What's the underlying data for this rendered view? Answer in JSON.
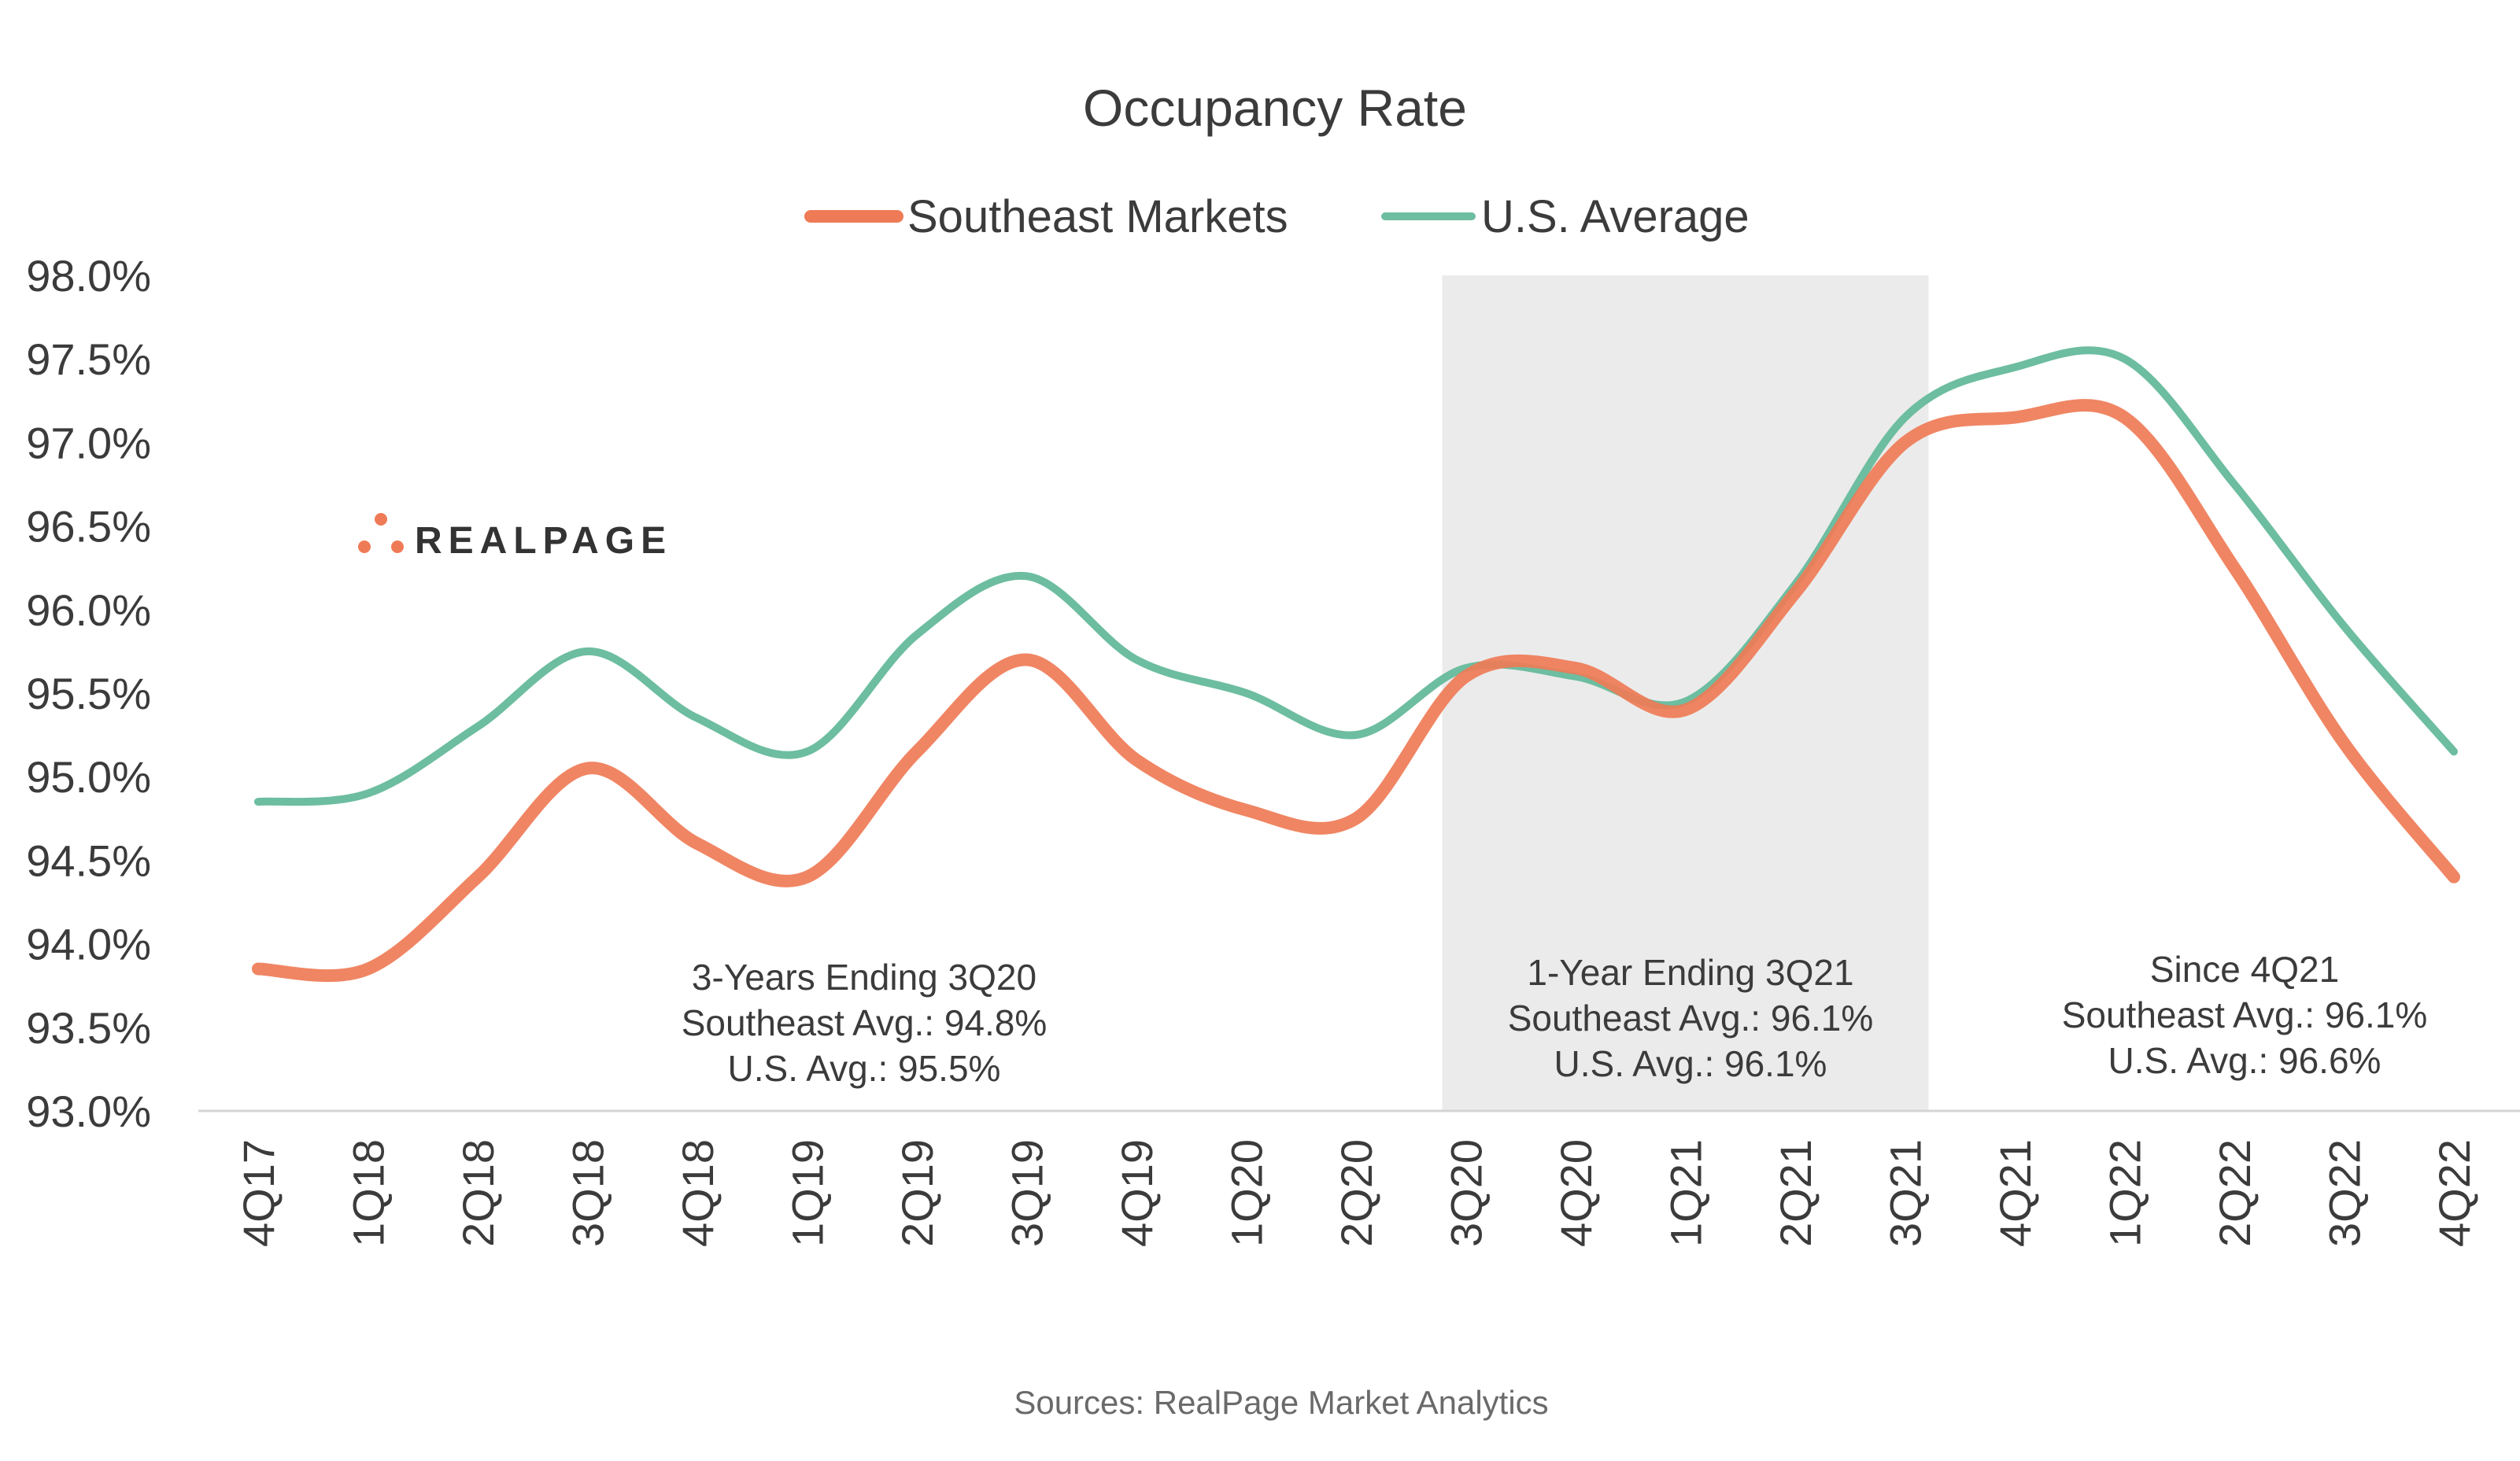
{
  "chart_data": {
    "type": "line",
    "title": "Occupancy Rate",
    "categories": [
      "4Q17",
      "1Q18",
      "2Q18",
      "3Q18",
      "4Q18",
      "1Q19",
      "2Q19",
      "3Q19",
      "4Q19",
      "1Q20",
      "2Q20",
      "3Q20",
      "4Q20",
      "1Q21",
      "2Q21",
      "3Q21",
      "4Q21",
      "1Q22",
      "2Q22",
      "3Q22",
      "4Q22"
    ],
    "series": [
      {
        "name": "Southeast Markets",
        "color": "#ef7b56",
        "values": [
          93.85,
          93.85,
          94.4,
          95.05,
          94.6,
          94.4,
          95.15,
          95.7,
          95.1,
          94.8,
          94.75,
          95.6,
          95.65,
          95.4,
          96.1,
          97.0,
          97.15,
          97.15,
          96.25,
          95.2,
          94.4
        ]
      },
      {
        "name": "U.S. Average",
        "color": "#6dbda0",
        "values": [
          94.85,
          94.9,
          95.3,
          95.75,
          95.35,
          95.15,
          95.85,
          96.2,
          95.7,
          95.5,
          95.25,
          95.65,
          95.6,
          95.45,
          96.15,
          97.15,
          97.45,
          97.5,
          96.75,
          95.9,
          95.15
        ]
      }
    ],
    "ylim": [
      93.0,
      98.0
    ],
    "yticks": [
      "93.0%",
      "93.5%",
      "94.0%",
      "94.5%",
      "95.0%",
      "95.5%",
      "96.0%",
      "96.5%",
      "97.0%",
      "97.5%",
      "98.0%"
    ],
    "legend": "top-center",
    "grid": false,
    "highlight_band": {
      "from": "3Q20",
      "to": "3Q21",
      "color": "#ebebeb"
    },
    "annotations": [
      {
        "lines": [
          "3-Years Ending 3Q20",
          "Southeast Avg.: 94.8%",
          "U.S. Avg.: 95.5%"
        ]
      },
      {
        "lines": [
          "1-Year Ending 3Q21",
          "Southeast Avg.: 96.1%",
          "U.S. Avg.: 96.1%"
        ]
      },
      {
        "lines": [
          "Since 4Q21",
          "Southeast Avg.: 96.1%",
          "U.S. Avg.: 96.6%"
        ]
      }
    ],
    "source": "Sources: RealPage Market Analytics"
  },
  "logo": {
    "text": "REALPAGE"
  }
}
